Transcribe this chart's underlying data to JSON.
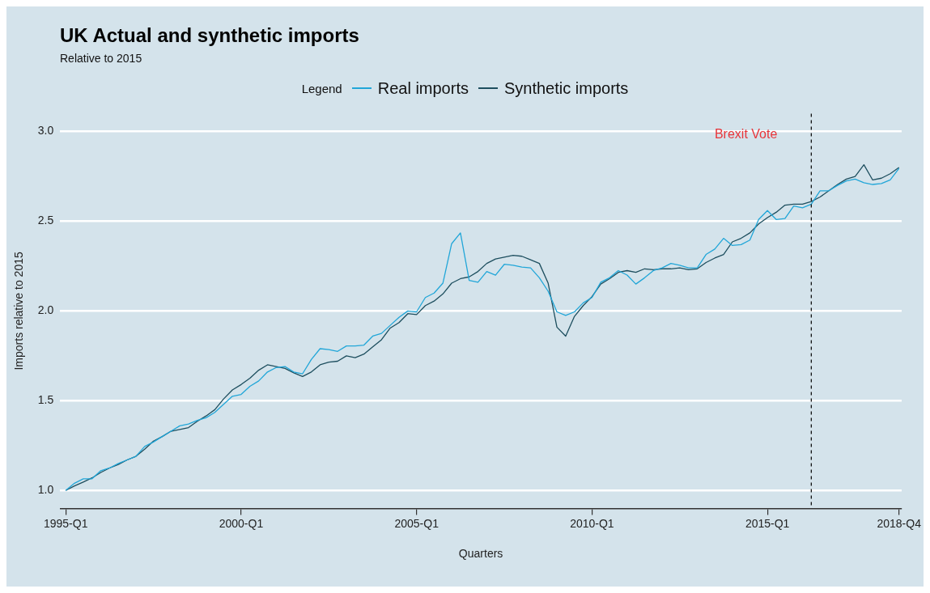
{
  "chart_data": {
    "type": "line",
    "title": "UK Actual and synthetic imports",
    "subtitle": "Relative to 2015",
    "xlabel": "Quarters",
    "ylabel": "Imports relative to 2015",
    "legend_title": "Legend",
    "legend": "top",
    "grid": "y",
    "marker": "none",
    "line_style": "solid",
    "categories": [
      "1995-Q1",
      null,
      null,
      null,
      null,
      null,
      null,
      null,
      null,
      null,
      null,
      null,
      null,
      null,
      null,
      null,
      null,
      null,
      null,
      null,
      "2000-Q1",
      null,
      null,
      null,
      null,
      null,
      null,
      null,
      null,
      null,
      null,
      null,
      null,
      null,
      null,
      null,
      null,
      null,
      null,
      null,
      "2005-Q1",
      null,
      null,
      null,
      null,
      null,
      null,
      null,
      null,
      null,
      null,
      null,
      null,
      null,
      null,
      null,
      null,
      null,
      null,
      null,
      "2010-Q1",
      null,
      null,
      null,
      null,
      null,
      null,
      null,
      null,
      null,
      null,
      null,
      null,
      null,
      null,
      null,
      null,
      null,
      null,
      null,
      "2015-Q1",
      null,
      null,
      null,
      null,
      null,
      null,
      null,
      null,
      null,
      null,
      null,
      null,
      null,
      null,
      "2018-Q4"
    ],
    "ylim": [
      0.9,
      3.1
    ],
    "yticks": [
      {
        "value": 1,
        "label": "1.0"
      },
      {
        "value": 1.5,
        "label": "1.5"
      },
      {
        "value": 2,
        "label": "2.0"
      },
      {
        "value": 2.5,
        "label": "2.5"
      },
      {
        "value": 3,
        "label": "3.0"
      }
    ],
    "series": [
      {
        "name": "Real imports",
        "color": "#21a6d8",
        "values": [
          1.0,
          1.04,
          1.065,
          1.065,
          1.11,
          1.125,
          1.15,
          1.17,
          1.19,
          1.245,
          1.27,
          1.3,
          1.33,
          1.36,
          1.37,
          1.39,
          1.405,
          1.435,
          1.48,
          1.525,
          1.535,
          1.58,
          1.61,
          1.66,
          1.685,
          1.69,
          1.66,
          1.65,
          1.73,
          1.79,
          1.785,
          1.775,
          1.805,
          1.805,
          1.81,
          1.86,
          1.875,
          1.92,
          1.965,
          2.0,
          1.995,
          2.075,
          2.1,
          2.155,
          2.375,
          2.435,
          2.17,
          2.16,
          2.22,
          2.2,
          2.26,
          2.255,
          2.245,
          2.24,
          2.185,
          2.11,
          1.995,
          1.975,
          1.995,
          2.045,
          2.075,
          2.16,
          2.185,
          2.225,
          2.2,
          2.15,
          2.185,
          2.225,
          2.24,
          2.265,
          2.255,
          2.24,
          2.24,
          2.315,
          2.345,
          2.405,
          2.365,
          2.37,
          2.395,
          2.51,
          2.56,
          2.51,
          2.515,
          2.585,
          2.575,
          2.595,
          2.67,
          2.67,
          2.7,
          2.725,
          2.735,
          2.715,
          2.705,
          2.71,
          2.73,
          2.795
        ]
      },
      {
        "name": "Synthetic imports",
        "color": "#1d4e5e",
        "values": [
          1.0,
          1.025,
          1.047,
          1.07,
          1.1,
          1.125,
          1.145,
          1.17,
          1.19,
          1.23,
          1.275,
          1.3,
          1.33,
          1.34,
          1.35,
          1.385,
          1.415,
          1.45,
          1.51,
          1.56,
          1.59,
          1.625,
          1.67,
          1.7,
          1.69,
          1.68,
          1.655,
          1.635,
          1.66,
          1.7,
          1.715,
          1.72,
          1.75,
          1.74,
          1.76,
          1.8,
          1.84,
          1.905,
          1.935,
          1.985,
          1.98,
          2.03,
          2.055,
          2.095,
          2.155,
          2.18,
          2.19,
          2.22,
          2.265,
          2.29,
          2.3,
          2.31,
          2.305,
          2.285,
          2.265,
          2.155,
          1.91,
          1.86,
          1.97,
          2.03,
          2.08,
          2.15,
          2.18,
          2.215,
          2.225,
          2.215,
          2.235,
          2.23,
          2.235,
          2.235,
          2.24,
          2.23,
          2.235,
          2.27,
          2.295,
          2.315,
          2.385,
          2.405,
          2.435,
          2.485,
          2.52,
          2.55,
          2.59,
          2.595,
          2.595,
          2.61,
          2.635,
          2.67,
          2.705,
          2.735,
          2.75,
          2.815,
          2.73,
          2.74,
          2.765,
          2.8
        ]
      }
    ],
    "annotations": [
      "Brexit Vote"
    ]
  }
}
